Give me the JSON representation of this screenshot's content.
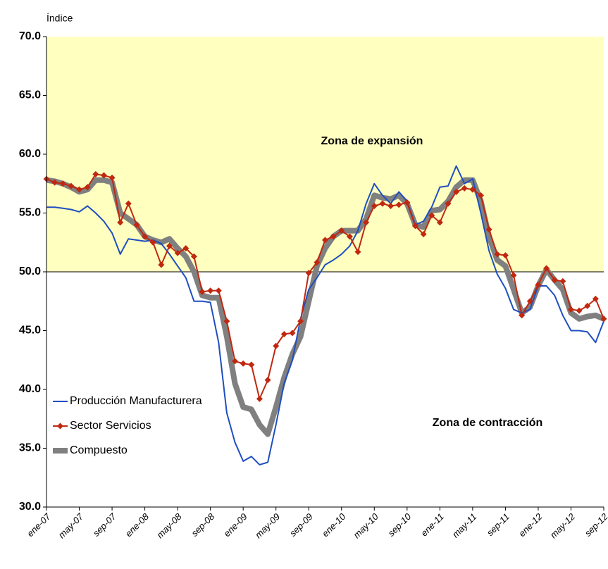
{
  "chart_data": {
    "type": "line",
    "y_label": "Índice",
    "annotations": [
      "Zona de expansión",
      "Zona de contracción"
    ],
    "threshold": 50,
    "expansion_color": "#ffffc0",
    "categories": [
      "ene-07",
      null,
      null,
      null,
      "may-07",
      null,
      null,
      null,
      "sep-07",
      null,
      null,
      null,
      "ene-08",
      null,
      null,
      null,
      "may-08",
      null,
      null,
      null,
      "sep-08",
      null,
      null,
      null,
      "ene-09",
      null,
      null,
      null,
      "may-09",
      null,
      null,
      null,
      "sep-09",
      null,
      null,
      null,
      "ene-10",
      null,
      null,
      null,
      "may-10",
      null,
      null,
      null,
      "sep-10",
      null,
      null,
      null,
      "ene-11",
      null,
      null,
      null,
      "may-11",
      null,
      null,
      null,
      "sep-11",
      null,
      null,
      null,
      "ene-12",
      null,
      null,
      null,
      "may-12",
      null,
      null,
      null,
      "sep-12"
    ],
    "series": [
      {
        "name": "Producción Manufacturera",
        "color": "#1f4fbf",
        "width": 2,
        "marker": false,
        "values": [
          55.5,
          55.5,
          55.4,
          55.3,
          55.1,
          55.6,
          55.0,
          54.3,
          53.3,
          51.5,
          52.8,
          52.7,
          52.6,
          52.7,
          52.4,
          51.5,
          50.5,
          49.5,
          47.5,
          47.5,
          47.4,
          44.0,
          38.0,
          35.5,
          33.9,
          34.3,
          33.6,
          33.8,
          37.0,
          40.5,
          42.5,
          46.0,
          48.5,
          49.5,
          50.6,
          51.0,
          51.5,
          52.2,
          53.5,
          55.8,
          57.5,
          56.5,
          55.8,
          56.8,
          56.0,
          54.0,
          54.3,
          55.5,
          57.2,
          57.3,
          59.0,
          57.5,
          57.9,
          55.0,
          51.8,
          49.8,
          48.6,
          46.8,
          46.5,
          46.8,
          48.8,
          48.8,
          48.0,
          46.3,
          45.0,
          45.0,
          44.9,
          44.0,
          45.8
        ]
      },
      {
        "name": "Sector Servicios",
        "color": "#c0280f",
        "width": 2,
        "marker": true,
        "values": [
          57.9,
          57.6,
          57.5,
          57.3,
          57.0,
          57.2,
          58.3,
          58.2,
          58.0,
          54.2,
          55.8,
          54.0,
          53.0,
          52.5,
          50.6,
          52.2,
          51.6,
          52.0,
          51.3,
          48.3,
          48.4,
          48.4,
          45.8,
          42.4,
          42.2,
          42.1,
          39.2,
          40.8,
          43.7,
          44.7,
          44.8,
          45.8,
          49.9,
          50.8,
          52.7,
          53.0,
          53.5,
          53.0,
          51.7,
          54.2,
          55.6,
          55.8,
          55.6,
          55.7,
          55.9,
          53.9,
          53.2,
          54.8,
          54.2,
          55.8,
          56.8,
          57.1,
          57.0,
          56.5,
          53.6,
          51.5,
          51.4,
          49.7,
          46.3,
          47.5,
          48.9,
          50.3,
          49.3,
          49.2,
          46.8,
          46.7,
          47.1,
          47.7,
          46.0
        ]
      },
      {
        "name": "Compuesto",
        "color": "#808080",
        "width": 8,
        "marker": false,
        "values": [
          57.8,
          57.7,
          57.5,
          57.2,
          56.8,
          57.0,
          57.8,
          57.8,
          57.6,
          55.0,
          54.5,
          54.0,
          53.0,
          52.7,
          52.5,
          52.8,
          52.0,
          51.3,
          50.0,
          48.0,
          47.8,
          47.8,
          44.5,
          40.5,
          38.5,
          38.3,
          37.0,
          36.2,
          38.5,
          41.0,
          43.0,
          44.5,
          47.5,
          50.5,
          52.0,
          53.0,
          53.5,
          53.5,
          53.5,
          54.5,
          56.5,
          56.3,
          56.2,
          56.5,
          55.8,
          54.0,
          53.8,
          55.2,
          55.3,
          56.0,
          57.2,
          57.8,
          57.8,
          56.0,
          53.0,
          51.0,
          50.5,
          48.5,
          46.5,
          47.0,
          48.8,
          50.2,
          49.3,
          48.5,
          46.5,
          46.0,
          46.2,
          46.3,
          46.0
        ]
      }
    ],
    "ylim": [
      30,
      70
    ],
    "yticks": [
      {
        "value": 30,
        "label": "30.0"
      },
      {
        "value": 35,
        "label": "35.0"
      },
      {
        "value": 40,
        "label": "40.0"
      },
      {
        "value": 45,
        "label": "45.0"
      },
      {
        "value": 50,
        "label": "50.0"
      },
      {
        "value": 55,
        "label": "55.0"
      },
      {
        "value": 60,
        "label": "60.0"
      },
      {
        "value": 65,
        "label": "65.0"
      },
      {
        "value": 70,
        "label": "70.0"
      }
    ]
  }
}
